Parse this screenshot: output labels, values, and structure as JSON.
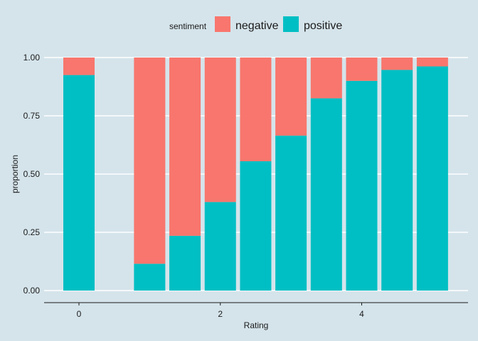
{
  "chart_data": {
    "type": "bar",
    "stacked": true,
    "x_values": [
      0,
      1,
      1.5,
      2,
      2.5,
      3,
      3.5,
      4,
      4.5,
      5
    ],
    "series": [
      {
        "name": "negative",
        "color": "#f8766d",
        "values": [
          0.075,
          0.885,
          0.765,
          0.62,
          0.445,
          0.335,
          0.175,
          0.1,
          0.053,
          0.038
        ]
      },
      {
        "name": "positive",
        "color": "#00bfc4",
        "values": [
          0.925,
          0.115,
          0.235,
          0.38,
          0.555,
          0.665,
          0.825,
          0.9,
          0.947,
          0.962
        ]
      }
    ],
    "xlabel": "Rating",
    "ylabel": "proportion",
    "x_ticks": [
      "0",
      "2",
      "4"
    ],
    "y_ticks": [
      "0.00",
      "0.25",
      "0.50",
      "0.75",
      "1.00"
    ],
    "ylim": [
      0,
      1
    ],
    "xlim": [
      -0.5,
      5.5
    ],
    "legend": {
      "title": "sentiment",
      "position": "top"
    },
    "grid": "horizontal"
  },
  "colors": {
    "background": "#d5e4eb",
    "grid": "#ffffff",
    "negative": "#f8766d",
    "positive": "#00bfc4"
  }
}
